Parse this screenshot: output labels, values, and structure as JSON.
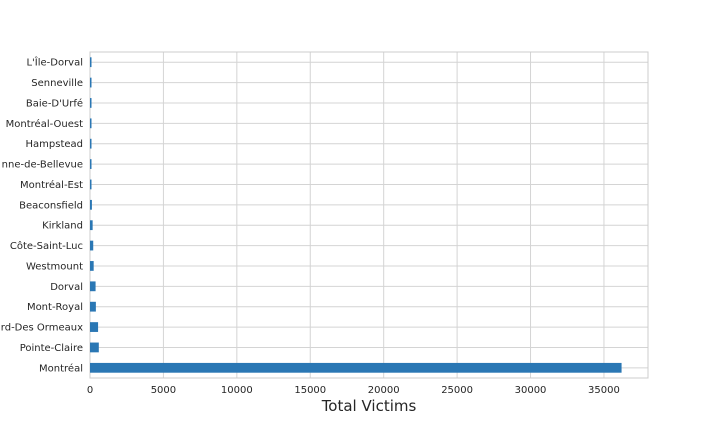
{
  "chart_data": {
    "type": "bar",
    "orientation": "horizontal",
    "categories": [
      "Montréal",
      "Pointe-Claire",
      "Saint-Laurent-Des Ormeaux",
      "Mont-Royal",
      "Dorval",
      "Westmount",
      "Côte-Saint-Luc",
      "Kirkland",
      "Beaconsfield",
      "Montréal-Est",
      "Sainte-Anne-de-Bellevue",
      "Hampstead",
      "Montréal-Ouest",
      "Baie-D'Urfé",
      "Senneville",
      "L'Île-Dorval"
    ],
    "category_labels": [
      "Montréal",
      "Pointe-Claire",
      "rd-Des Ormeaux",
      "Mont-Royal",
      "Dorval",
      "Westmount",
      "Côte-Saint-Luc",
      "Kirkland",
      "Beaconsfield",
      "Montréal-Est",
      "nne-de-Bellevue",
      "Hampstead",
      "Montréal-Ouest",
      "Baie-D'Urfé",
      "Senneville",
      "L'Île-Dorval"
    ],
    "values": [
      36200,
      600,
      550,
      400,
      380,
      250,
      220,
      180,
      130,
      100,
      30,
      15,
      10,
      8,
      5,
      2
    ],
    "xlabel": "Total Victims",
    "ylabel": "",
    "xlim": [
      0,
      38000
    ],
    "xticks": [
      0,
      5000,
      10000,
      15000,
      20000,
      25000,
      30000,
      35000
    ],
    "grid": true,
    "bar_color": "#2a77b4"
  }
}
